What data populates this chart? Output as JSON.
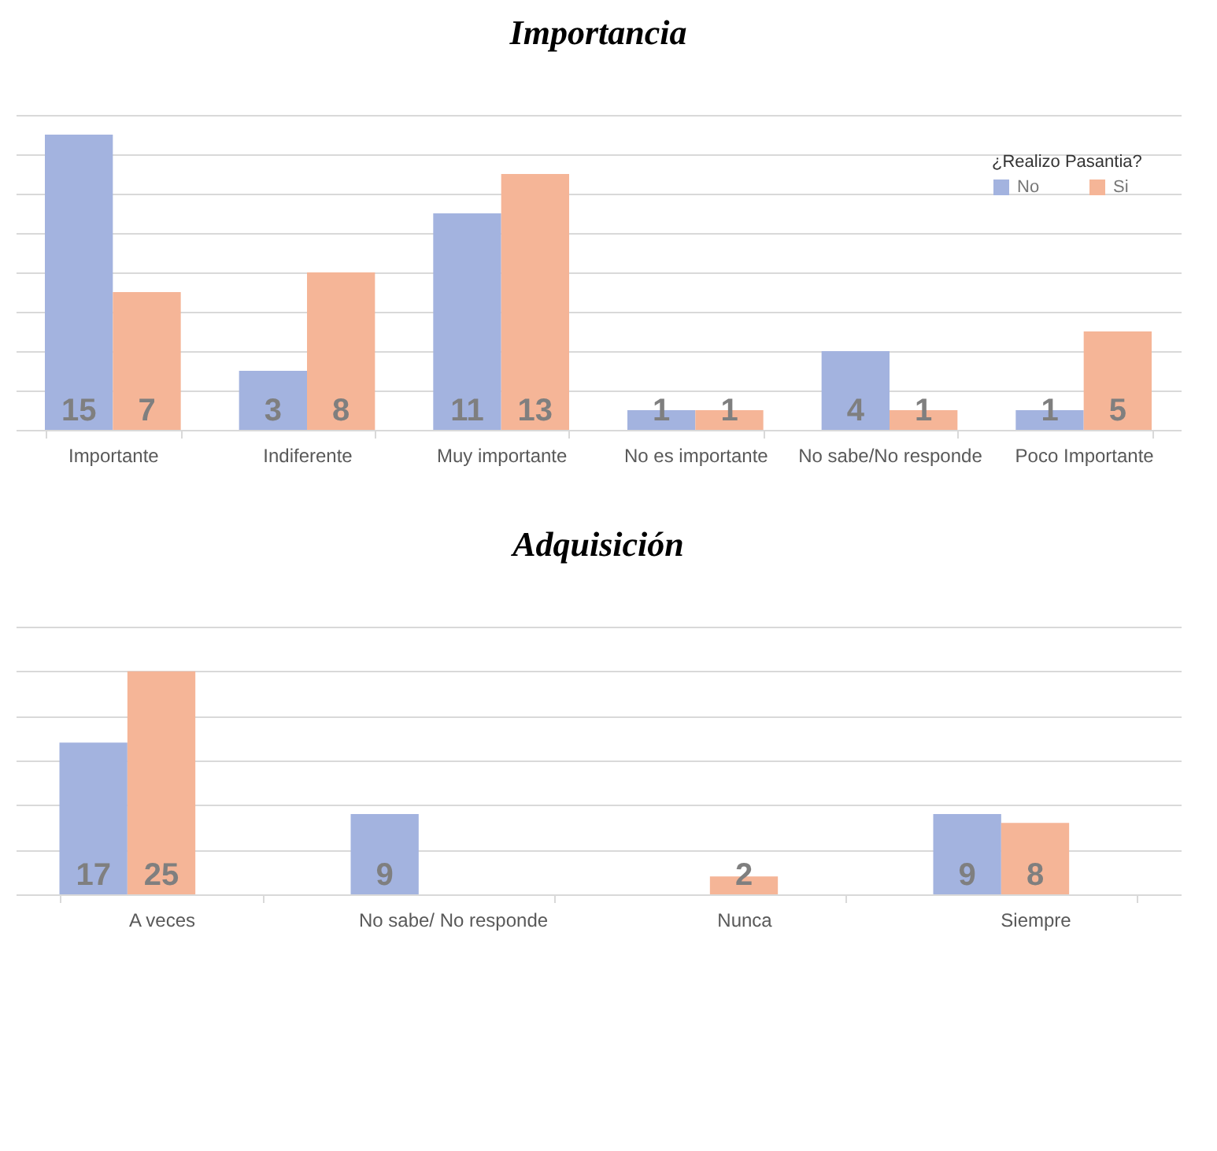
{
  "chart_data": [
    {
      "type": "bar",
      "title": "Importancia",
      "categories": [
        "Importante",
        "Indiferente",
        "Muy importante",
        "No es importante",
        "No sabe/No responde",
        "Poco Importante"
      ],
      "series": [
        {
          "name": "No",
          "color": "#a3b3df",
          "values": [
            15,
            3,
            11,
            1,
            4,
            1
          ]
        },
        {
          "name": "Si",
          "color": "#f5b597",
          "values": [
            7,
            8,
            13,
            1,
            1,
            5
          ]
        }
      ],
      "legend_title": "¿Realizo Pasantia?",
      "legend": "top right",
      "data_labels": true,
      "grid": "y",
      "tick_labels": "x",
      "ylim": [
        0,
        16
      ]
    },
    {
      "type": "bar",
      "title": "Adquisición",
      "categories": [
        "A veces",
        "No sabe/ No responde",
        "Nunca",
        "Siempre"
      ],
      "series": [
        {
          "name": "No",
          "color": "#a3b3df",
          "values": [
            17,
            9,
            null,
            9
          ]
        },
        {
          "name": "Si",
          "color": "#f5b597",
          "values": [
            25,
            null,
            2,
            8
          ]
        }
      ],
      "legend": false,
      "data_labels": true,
      "grid": "y",
      "tick_labels": "x",
      "ylim": [
        0,
        30
      ]
    }
  ]
}
